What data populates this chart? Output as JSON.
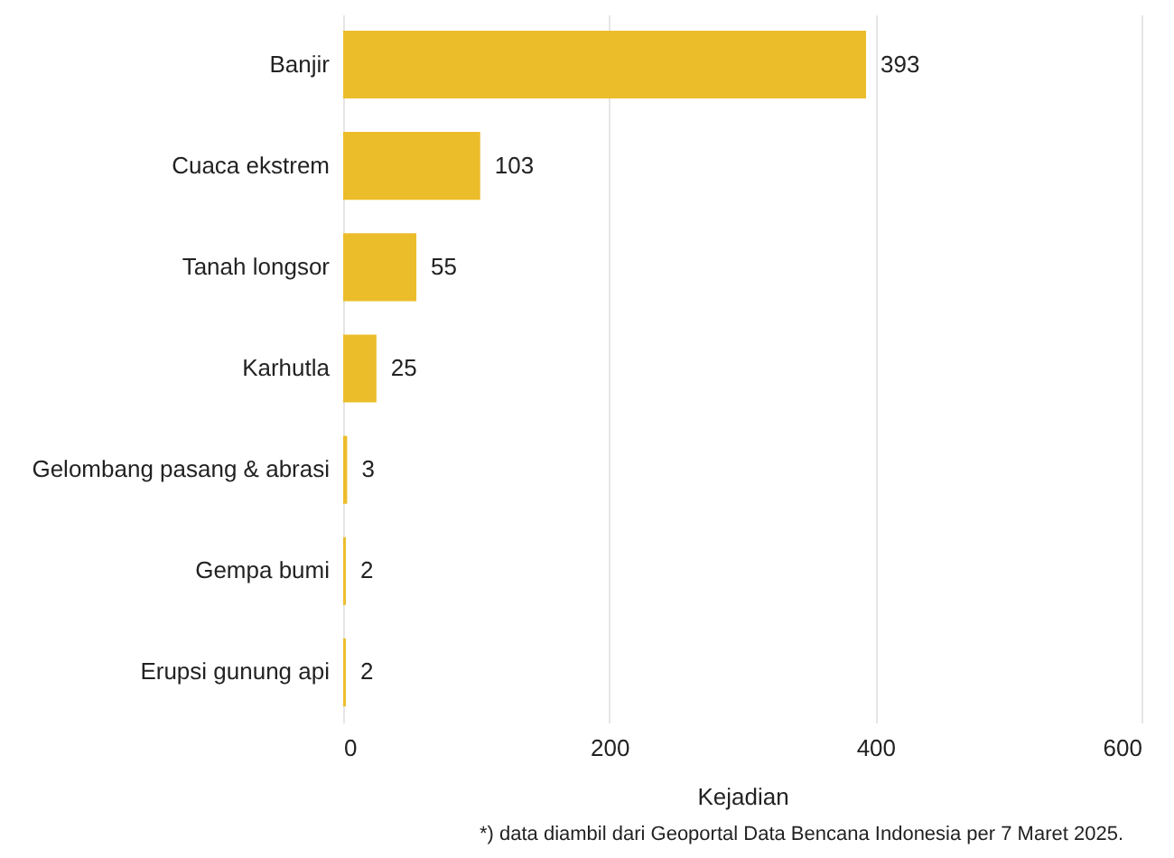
{
  "chart_data": {
    "type": "bar",
    "orientation": "horizontal",
    "xlabel": "Kejadian",
    "categories": [
      "Banjir",
      "Cuaca ekstrem",
      "Tanah longsor",
      "Karhutla",
      "Gelombang pasang & abrasi",
      "Gempa bumi",
      "Erupsi gunung api"
    ],
    "values": [
      393,
      103,
      55,
      25,
      3,
      2,
      2
    ],
    "color": "#ecbd2b",
    "xlim": [
      0,
      600
    ],
    "xticks": [
      0,
      200,
      400,
      600
    ],
    "grid": "x",
    "data_labels": true,
    "annotations": [
      "*) data diambil dari Geoportal Data Bencana Indonesia per 7 Maret 2025."
    ]
  }
}
